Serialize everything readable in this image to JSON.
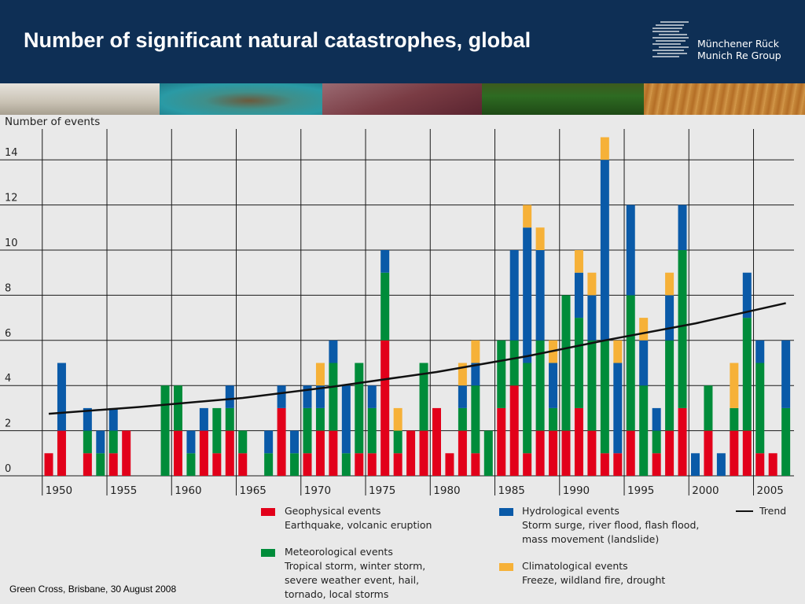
{
  "header": {
    "title": "Number of significant natural catastrophes, global",
    "logo_line1": "Münchener Rück",
    "logo_line2": "Munich Re Group",
    "background": "#0e2f55"
  },
  "footer": {
    "text": "Green Cross, Brisbane, 30 August 2008"
  },
  "colors": {
    "geophysical": "#e2001a",
    "meteorological": "#008c3a",
    "hydrological": "#0a5aa8",
    "climatological": "#f6b138",
    "chart_bg": "#e9e9e9",
    "trend": "#111111"
  },
  "legend": {
    "geophysical": {
      "label": "Geophysical events",
      "desc": "Earthquake, volcanic eruption"
    },
    "hydrological": {
      "label": "Hydrological events",
      "desc": "Storm surge, river flood, flash flood,\nmass movement (landslide)"
    },
    "meteorological": {
      "label": "Meteorological events",
      "desc": "Tropical storm, winter storm,\nsevere weather event, hail,\ntornado, local storms"
    },
    "climatological": {
      "label": "Climatological events",
      "desc": "Freeze, wildland fire, drought"
    },
    "trend": {
      "label": "Trend"
    }
  },
  "chart_data": {
    "type": "bar",
    "stacked": true,
    "ylabel": "Number of events",
    "ylim": [
      0,
      16
    ],
    "yticks": [
      0,
      2,
      4,
      6,
      8,
      10,
      12,
      14
    ],
    "xtick_labels": [
      "1950",
      "1955",
      "1960",
      "1965",
      "1970",
      "1975",
      "1980",
      "1985",
      "1990",
      "1995",
      "2000",
      "2005"
    ],
    "categories": [
      1950,
      1951,
      1952,
      1953,
      1954,
      1955,
      1956,
      1957,
      1958,
      1959,
      1960,
      1961,
      1962,
      1963,
      1964,
      1965,
      1966,
      1967,
      1968,
      1969,
      1970,
      1971,
      1972,
      1973,
      1974,
      1975,
      1976,
      1977,
      1978,
      1979,
      1980,
      1981,
      1982,
      1983,
      1984,
      1985,
      1986,
      1987,
      1988,
      1989,
      1990,
      1991,
      1992,
      1993,
      1994,
      1995,
      1996,
      1997,
      1998,
      1999,
      2000,
      2001,
      2002,
      2003,
      2004,
      2005,
      2006,
      2007
    ],
    "series": [
      {
        "name": "Geophysical events",
        "key": "geophysical",
        "values": [
          1,
          2,
          0,
          1,
          0,
          1,
          2,
          0,
          0,
          0,
          2,
          0,
          2,
          1,
          2,
          1,
          0,
          0,
          3,
          0,
          1,
          2,
          2,
          0,
          1,
          1,
          6,
          1,
          2,
          2,
          3,
          1,
          2,
          1,
          0,
          3,
          4,
          1,
          2,
          2,
          2,
          3,
          2,
          1,
          1,
          2,
          0,
          1,
          2,
          3,
          0,
          2,
          0,
          2,
          2,
          1,
          1,
          0
        ]
      },
      {
        "name": "Meteorological events",
        "key": "meteorological",
        "values": [
          0,
          0,
          0,
          1,
          1,
          1,
          0,
          0,
          0,
          4,
          2,
          1,
          0,
          2,
          1,
          1,
          0,
          1,
          0,
          1,
          2,
          1,
          3,
          1,
          4,
          2,
          3,
          1,
          0,
          3,
          0,
          0,
          1,
          3,
          2,
          3,
          2,
          4,
          4,
          1,
          6,
          4,
          4,
          5,
          0,
          6,
          4,
          1,
          4,
          7,
          0,
          2,
          0,
          1,
          5,
          4,
          0,
          3
        ]
      },
      {
        "name": "Hydrological events",
        "key": "hydrological",
        "values": [
          0,
          3,
          0,
          1,
          1,
          1,
          0,
          0,
          0,
          0,
          0,
          1,
          1,
          0,
          1,
          0,
          0,
          1,
          1,
          1,
          1,
          1,
          1,
          3,
          0,
          1,
          1,
          0,
          0,
          0,
          0,
          0,
          1,
          1,
          0,
          0,
          4,
          6,
          4,
          2,
          0,
          2,
          2,
          8,
          4,
          4,
          2,
          1,
          2,
          2,
          1,
          0,
          1,
          0,
          2,
          1,
          0,
          3
        ]
      },
      {
        "name": "Climatological events",
        "key": "climatological",
        "values": [
          0,
          0,
          0,
          0,
          0,
          0,
          0,
          0,
          0,
          0,
          0,
          0,
          0,
          0,
          0,
          0,
          0,
          0,
          0,
          0,
          0,
          1,
          0,
          0,
          0,
          0,
          0,
          1,
          0,
          0,
          0,
          0,
          1,
          1,
          0,
          0,
          0,
          1,
          1,
          1,
          0,
          1,
          1,
          1,
          1,
          0,
          1,
          0,
          1,
          0,
          0,
          0,
          0,
          2,
          0,
          0,
          0,
          0
        ]
      }
    ],
    "trend": {
      "name": "Trend",
      "x": [
        1950,
        1957,
        1965,
        1972,
        1980,
        1987,
        1993,
        2000,
        2007
      ],
      "y": [
        2.75,
        3.05,
        3.45,
        3.95,
        4.6,
        5.3,
        6.0,
        6.75,
        7.65
      ]
    }
  }
}
